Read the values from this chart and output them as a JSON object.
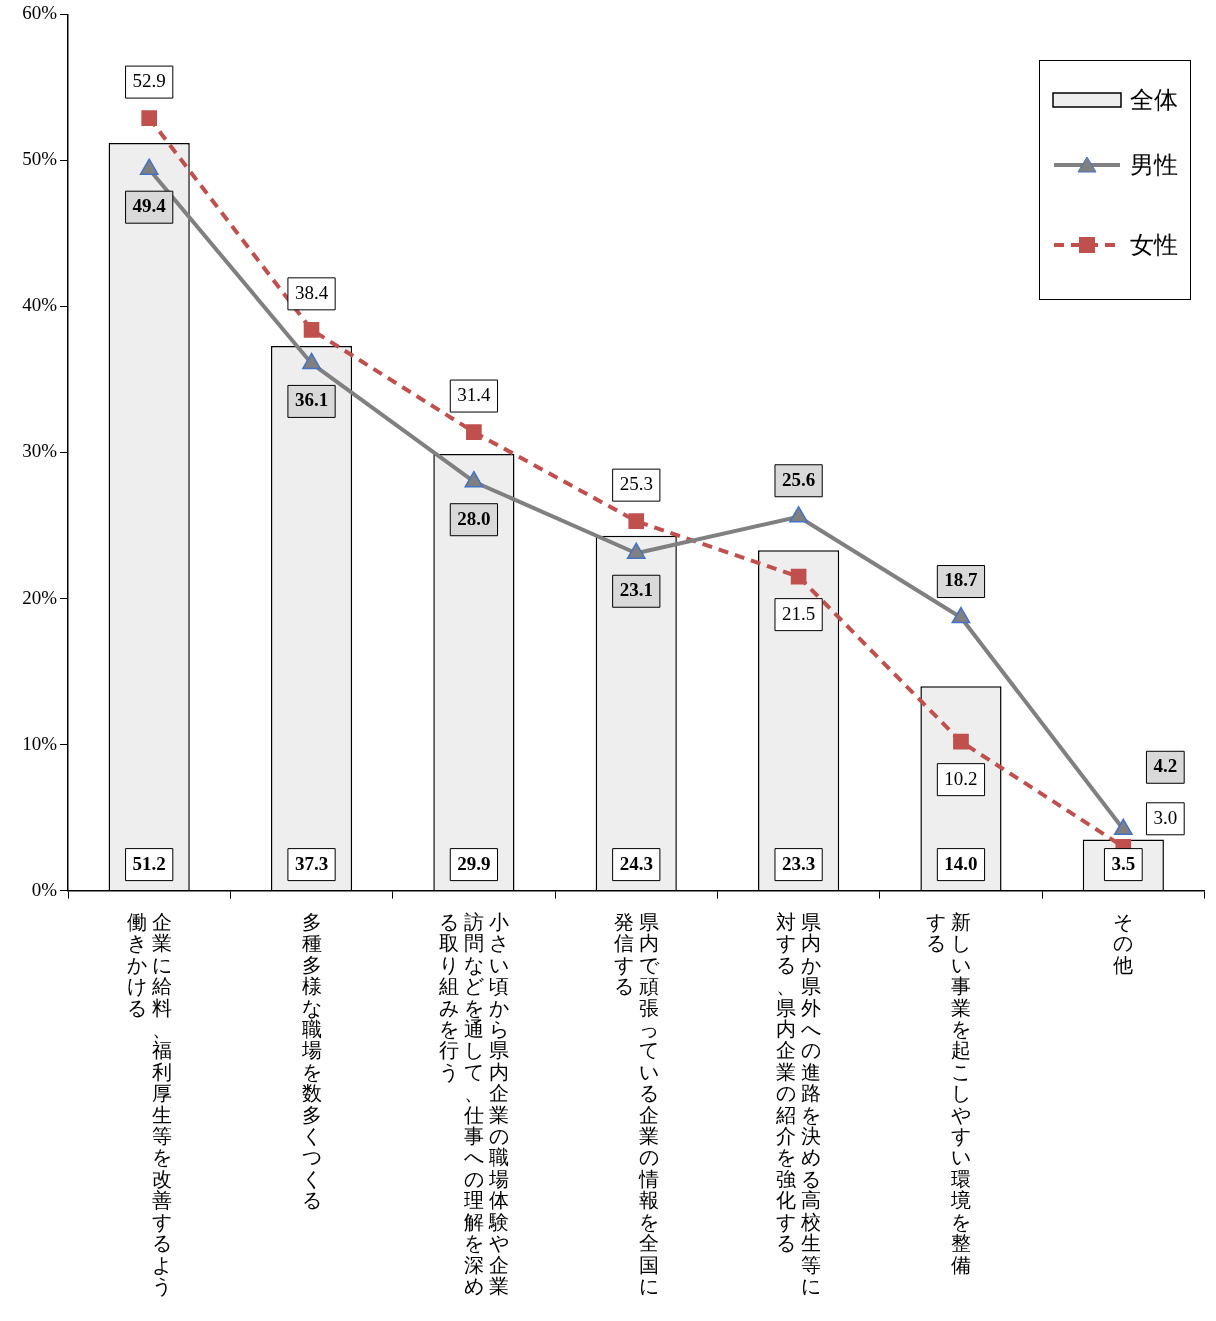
{
  "chart_data": {
    "type": "bar",
    "categories": [
      "企業に給料、福利厚生等を改善するよう働きかける",
      "多種多様な職場を数多くつくる",
      "小さい頃から県内企業の職場体験や企業訪問などを通して、仕事への理解を深める取り組みを行う",
      "県内で頑張っている企業の情報を全国に発信する",
      "県内か県外への進路を決める高校生等に対する、県内企業の紹介を強化する",
      "新しい事業を起こしやすい環境を整備する",
      "その他"
    ],
    "series": [
      {
        "name": "全体",
        "color": "#eeeeee",
        "values": [
          51.2,
          37.3,
          29.9,
          24.3,
          23.3,
          14.0,
          3.5
        ],
        "value_labels": [
          "51.2",
          "37.3",
          "29.9",
          "24.3",
          "23.3",
          "14.0",
          "3.5"
        ]
      },
      {
        "name": "男性",
        "type": "line",
        "color": "#808080",
        "marker": "triangle",
        "line_style": "solid",
        "values": [
          49.4,
          36.1,
          28.0,
          23.1,
          25.6,
          18.7,
          4.2
        ],
        "value_labels": [
          "49.4",
          "36.1",
          "28.0",
          "23.1",
          "25.6",
          "18.7",
          "4.2"
        ]
      },
      {
        "name": "女性",
        "type": "line",
        "color": "#c0504d",
        "marker": "square",
        "line_style": "dashed",
        "values": [
          52.9,
          38.4,
          31.4,
          25.3,
          21.5,
          10.2,
          3.0
        ],
        "value_labels": [
          "52.9",
          "38.4",
          "31.4",
          "25.3",
          "21.5",
          "10.2",
          "3.0"
        ]
      }
    ],
    "ylim": [
      0,
      60
    ],
    "yticks": [
      {
        "value": 0,
        "label": "0%"
      },
      {
        "value": 10,
        "label": "10%"
      },
      {
        "value": 20,
        "label": "20%"
      },
      {
        "value": 30,
        "label": "30%"
      },
      {
        "value": 40,
        "label": "40%"
      },
      {
        "value": 50,
        "label": "50%"
      },
      {
        "value": 60,
        "label": "60%"
      }
    ],
    "grid": false,
    "legend": "top right"
  }
}
